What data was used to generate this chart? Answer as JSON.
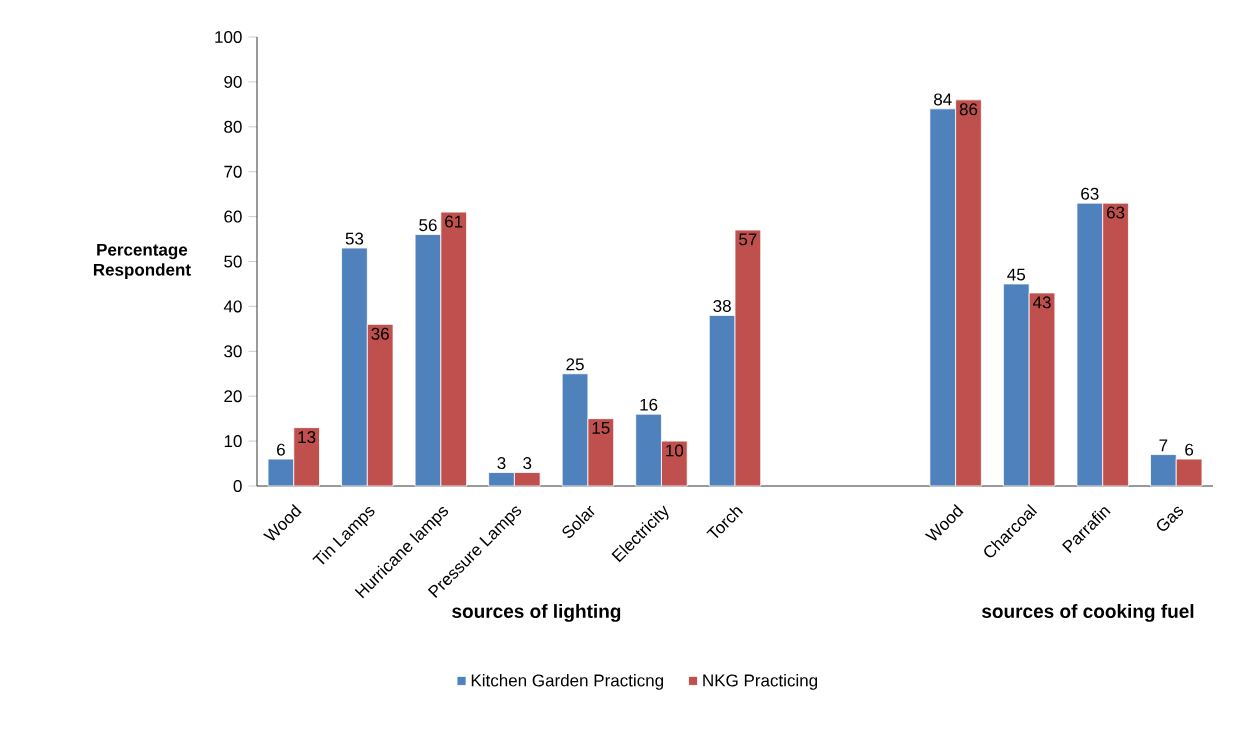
{
  "chart_data": {
    "type": "bar",
    "ylabel": "Percentage Respondent",
    "categories": [
      "Wood",
      "Tin Lamps",
      "Hurricane lamps",
      "Pressure Lamps",
      "Solar",
      "Electricity",
      "Torch",
      null,
      null,
      "Wood",
      "Charcoal",
      "Parrafin",
      "Gas"
    ],
    "series": [
      {
        "name": "Kitchen Garden Practicng",
        "color": "#4f81bd",
        "values": [
          6,
          53,
          56,
          3,
          25,
          16,
          38,
          null,
          null,
          84,
          45,
          63,
          7
        ]
      },
      {
        "name": "NKG Practicing",
        "color": "#c0504d",
        "values": [
          13,
          36,
          61,
          3,
          15,
          10,
          57,
          null,
          null,
          86,
          43,
          63,
          6
        ]
      }
    ],
    "ylim": [
      0,
      100
    ],
    "yticks": [
      0,
      10,
      20,
      30,
      40,
      50,
      60,
      70,
      80,
      90,
      100
    ],
    "annotations": [
      "sources of lighting",
      "sources of cooking fuel"
    ],
    "data_labels": true,
    "legend": "bottom",
    "grid": false
  }
}
